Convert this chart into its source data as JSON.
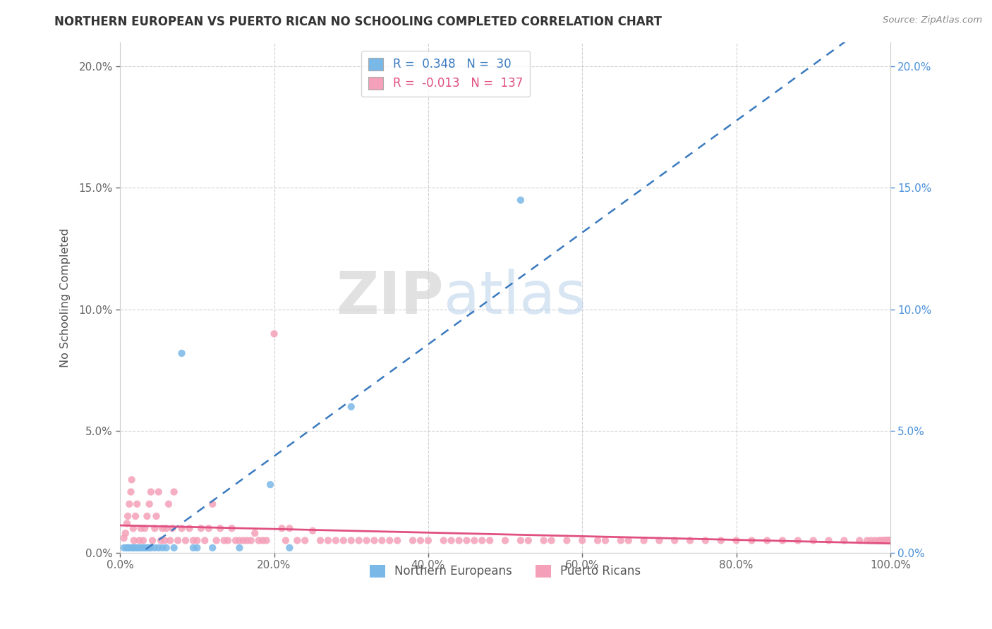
{
  "title": "NORTHERN EUROPEAN VS PUERTO RICAN NO SCHOOLING COMPLETED CORRELATION CHART",
  "source": "Source: ZipAtlas.com",
  "ylabel": "No Schooling Completed",
  "xlim": [
    0.0,
    1.0
  ],
  "ylim": [
    0.0,
    0.21
  ],
  "xticks": [
    0.0,
    0.2,
    0.4,
    0.6,
    0.8,
    1.0
  ],
  "xticklabels": [
    "0.0%",
    "20.0%",
    "40.0%",
    "60.0%",
    "80.0%",
    "100.0%"
  ],
  "yticks": [
    0.0,
    0.05,
    0.1,
    0.15,
    0.2
  ],
  "yticklabels": [
    "0.0%",
    "5.0%",
    "10.0%",
    "15.0%",
    "20.0%"
  ],
  "blue_scatter_color": "#7ab8e8",
  "pink_scatter_color": "#f4a0b8",
  "blue_line_color": "#3a7abf",
  "pink_line_color": "#e05080",
  "right_tick_color": "#4a90d9",
  "R_blue": "0.348",
  "N_blue": "30",
  "R_pink": "-0.013",
  "N_pink": "137",
  "legend_label_blue": "Northern Europeans",
  "legend_label_pink": "Puerto Ricans",
  "blue_x": [
    0.005,
    0.008,
    0.01,
    0.012,
    0.015,
    0.017,
    0.018,
    0.02,
    0.022,
    0.025,
    0.027,
    0.03,
    0.032,
    0.035,
    0.038,
    0.04,
    0.045,
    0.05,
    0.055,
    0.06,
    0.07,
    0.08,
    0.095,
    0.1,
    0.12,
    0.155,
    0.195,
    0.22,
    0.3,
    0.52
  ],
  "blue_y": [
    0.002,
    0.002,
    0.002,
    0.002,
    0.002,
    0.002,
    0.002,
    0.002,
    0.002,
    0.002,
    0.002,
    0.002,
    0.002,
    0.002,
    0.002,
    0.002,
    0.002,
    0.002,
    0.002,
    0.002,
    0.002,
    0.082,
    0.002,
    0.002,
    0.002,
    0.002,
    0.028,
    0.002,
    0.06,
    0.145
  ],
  "pink_x": [
    0.005,
    0.007,
    0.009,
    0.01,
    0.012,
    0.014,
    0.015,
    0.017,
    0.018,
    0.02,
    0.022,
    0.025,
    0.027,
    0.03,
    0.032,
    0.035,
    0.038,
    0.04,
    0.042,
    0.045,
    0.047,
    0.05,
    0.053,
    0.055,
    0.058,
    0.06,
    0.063,
    0.065,
    0.068,
    0.07,
    0.075,
    0.08,
    0.085,
    0.09,
    0.095,
    0.1,
    0.105,
    0.11,
    0.115,
    0.12,
    0.125,
    0.13,
    0.135,
    0.14,
    0.145,
    0.15,
    0.155,
    0.16,
    0.165,
    0.17,
    0.175,
    0.18,
    0.185,
    0.19,
    0.2,
    0.21,
    0.215,
    0.22,
    0.23,
    0.24,
    0.25,
    0.26,
    0.27,
    0.28,
    0.29,
    0.3,
    0.31,
    0.32,
    0.33,
    0.34,
    0.35,
    0.36,
    0.38,
    0.39,
    0.4,
    0.42,
    0.43,
    0.44,
    0.45,
    0.46,
    0.47,
    0.48,
    0.5,
    0.52,
    0.53,
    0.55,
    0.56,
    0.58,
    0.6,
    0.62,
    0.63,
    0.65,
    0.66,
    0.68,
    0.7,
    0.72,
    0.74,
    0.76,
    0.78,
    0.8,
    0.82,
    0.84,
    0.86,
    0.88,
    0.9,
    0.92,
    0.94,
    0.96,
    0.97,
    0.975,
    0.98,
    0.985,
    0.988,
    0.99,
    0.992,
    0.993,
    0.994,
    0.995,
    0.996,
    0.997,
    0.998,
    0.999,
    0.999,
    0.999,
    0.999,
    0.999,
    0.999,
    0.999,
    0.999,
    0.999,
    0.999,
    0.999,
    0.999,
    0.999,
    0.999,
    0.999,
    0.999
  ],
  "pink_y": [
    0.006,
    0.008,
    0.012,
    0.015,
    0.02,
    0.025,
    0.03,
    0.01,
    0.005,
    0.015,
    0.02,
    0.005,
    0.01,
    0.005,
    0.01,
    0.015,
    0.02,
    0.025,
    0.005,
    0.01,
    0.015,
    0.025,
    0.005,
    0.01,
    0.005,
    0.01,
    0.02,
    0.005,
    0.01,
    0.025,
    0.005,
    0.01,
    0.005,
    0.01,
    0.005,
    0.005,
    0.01,
    0.005,
    0.01,
    0.02,
    0.005,
    0.01,
    0.005,
    0.005,
    0.01,
    0.005,
    0.005,
    0.005,
    0.005,
    0.005,
    0.008,
    0.005,
    0.005,
    0.005,
    0.09,
    0.01,
    0.005,
    0.01,
    0.005,
    0.005,
    0.009,
    0.005,
    0.005,
    0.005,
    0.005,
    0.005,
    0.005,
    0.005,
    0.005,
    0.005,
    0.005,
    0.005,
    0.005,
    0.005,
    0.005,
    0.005,
    0.005,
    0.005,
    0.005,
    0.005,
    0.005,
    0.005,
    0.005,
    0.005,
    0.005,
    0.005,
    0.005,
    0.005,
    0.005,
    0.005,
    0.005,
    0.005,
    0.005,
    0.005,
    0.005,
    0.005,
    0.005,
    0.005,
    0.005,
    0.005,
    0.005,
    0.005,
    0.005,
    0.005,
    0.005,
    0.005,
    0.005,
    0.005,
    0.005,
    0.005,
    0.005,
    0.005,
    0.005,
    0.005,
    0.005,
    0.005,
    0.005,
    0.005,
    0.005,
    0.005,
    0.005,
    0.005,
    0.005,
    0.005,
    0.005,
    0.005,
    0.005,
    0.005,
    0.005,
    0.005,
    0.005,
    0.005,
    0.005,
    0.005,
    0.005,
    0.005,
    0.005
  ]
}
